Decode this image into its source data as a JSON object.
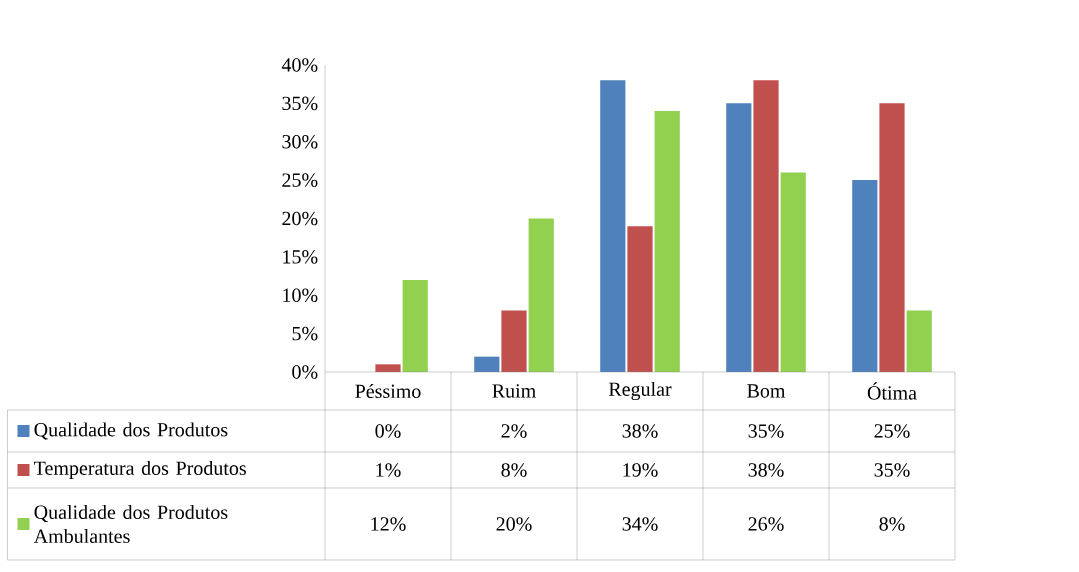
{
  "chart_data": {
    "type": "bar",
    "categories": [
      "Péssimo",
      "Ruim",
      "Regular",
      "Bom",
      "Ótima"
    ],
    "ylim": [
      0,
      40
    ],
    "yticks": [
      {
        "value": 0,
        "label": "0%"
      },
      {
        "value": 5,
        "label": "5%"
      },
      {
        "value": 10,
        "label": "10%"
      },
      {
        "value": 15,
        "label": "15%"
      },
      {
        "value": 20,
        "label": "20%"
      },
      {
        "value": 25,
        "label": "25%"
      },
      {
        "value": 30,
        "label": "30%"
      },
      {
        "value": 35,
        "label": "35%"
      },
      {
        "value": 40,
        "label": "40%"
      }
    ],
    "legend": "bottom",
    "series": [
      {
        "name": "Qualidade dos Produtos",
        "color": "#4f81bd",
        "values": [
          0,
          2,
          38,
          35,
          25
        ],
        "value_labels": [
          "0%",
          "2%",
          "38%",
          "35%",
          "25%"
        ]
      },
      {
        "name": "Temperatura dos Produtos",
        "color": "#c0504d",
        "values": [
          1,
          8,
          19,
          38,
          35
        ],
        "value_labels": [
          "1%",
          "8%",
          "19%",
          "38%",
          "35%"
        ]
      },
      {
        "name": "Qualidade dos Produtos Ambulantes",
        "color": "#92d050",
        "values": [
          12,
          20,
          34,
          26,
          8
        ],
        "value_labels": [
          "12%",
          "20%",
          "34%",
          "26%",
          "8%"
        ]
      }
    ]
  }
}
